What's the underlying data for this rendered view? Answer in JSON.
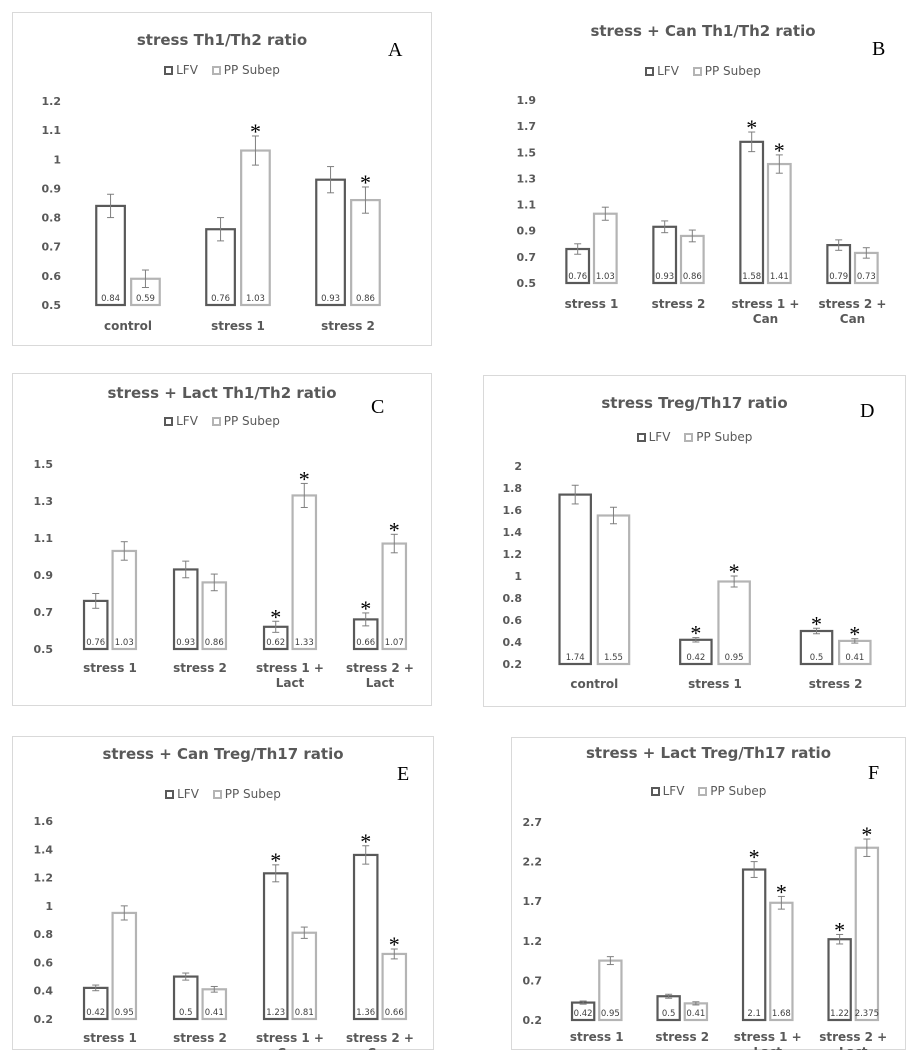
{
  "colors": {
    "series1": "#595959",
    "series2": "#b4b4b4",
    "text": "#595959"
  },
  "chart_data": [
    {
      "letter": "A",
      "type": "bar",
      "title": "stress Th1/Th2 ratio",
      "categories": [
        [
          "control"
        ],
        [
          "stress 1"
        ],
        [
          "stress 2"
        ]
      ],
      "ylim": [
        0.5,
        1.2
      ],
      "yticks": [
        "0.5",
        "0.6",
        "0.7",
        "0.8",
        "0.9",
        "1",
        "1.1",
        "1.2"
      ],
      "series": [
        {
          "name": "LFV",
          "values": [
            0.84,
            0.76,
            0.93
          ],
          "labels": [
            "0.84",
            "0.76",
            "0.93"
          ],
          "errors": [
            0.04,
            0.04,
            0.045
          ],
          "star": [
            false,
            false,
            false
          ]
        },
        {
          "name": "PP Subep",
          "values": [
            0.59,
            1.03,
            0.86
          ],
          "labels": [
            "0.59",
            "1.03",
            "0.86"
          ],
          "errors": [
            0.03,
            0.05,
            0.045
          ],
          "star": [
            false,
            true,
            true
          ]
        }
      ]
    },
    {
      "letter": "B",
      "type": "bar",
      "title": "stress + Can Th1/Th2 ratio",
      "categories": [
        [
          "stress 1"
        ],
        [
          "stress 2"
        ],
        [
          "stress 1 +",
          "Can"
        ],
        [
          "stress 2 +",
          "Can"
        ]
      ],
      "ylim": [
        0.5,
        1.9
      ],
      "yticks": [
        "0.5",
        "0.7",
        "0.9",
        "1.1",
        "1.3",
        "1.5",
        "1.7",
        "1.9"
      ],
      "series": [
        {
          "name": "LFV",
          "values": [
            0.76,
            0.93,
            1.58,
            0.79
          ],
          "labels": [
            "0.76",
            "0.93",
            "1.58",
            "0.79"
          ],
          "errors": [
            0.04,
            0.045,
            0.075,
            0.04
          ],
          "star": [
            false,
            false,
            true,
            false
          ]
        },
        {
          "name": "PP Subep",
          "values": [
            1.03,
            0.86,
            1.41,
            0.73
          ],
          "labels": [
            "1.03",
            "0.86",
            "1.41",
            "0.73"
          ],
          "errors": [
            0.05,
            0.045,
            0.07,
            0.04
          ],
          "star": [
            false,
            false,
            true,
            false
          ]
        }
      ]
    },
    {
      "letter": "C",
      "type": "bar",
      "title": "stress + Lact Th1/Th2 ratio",
      "categories": [
        [
          "stress 1"
        ],
        [
          "stress 2"
        ],
        [
          "stress 1 +",
          "Lact"
        ],
        [
          "stress 2 +",
          "Lact"
        ]
      ],
      "ylim": [
        0.5,
        1.5
      ],
      "yticks": [
        "0.5",
        "0.7",
        "0.9",
        "1.1",
        "1.3",
        "1.5"
      ],
      "series": [
        {
          "name": "LFV",
          "values": [
            0.76,
            0.93,
            0.62,
            0.66
          ],
          "labels": [
            "0.76",
            "0.93",
            "0.62",
            "0.66"
          ],
          "errors": [
            0.04,
            0.045,
            0.03,
            0.035
          ],
          "star": [
            false,
            false,
            true,
            true
          ]
        },
        {
          "name": "PP Subep",
          "values": [
            1.03,
            0.86,
            1.33,
            1.07
          ],
          "labels": [
            "1.03",
            "0.86",
            "1.33",
            "1.07"
          ],
          "errors": [
            0.05,
            0.045,
            0.065,
            0.05
          ],
          "star": [
            false,
            false,
            true,
            true
          ]
        }
      ]
    },
    {
      "letter": "D",
      "type": "bar",
      "title": "stress Treg/Th17 ratio",
      "categories": [
        [
          "control"
        ],
        [
          "stress 1"
        ],
        [
          "stress 2"
        ]
      ],
      "ylim": [
        0.2,
        2.0
      ],
      "yticks": [
        "0.2",
        "0.4",
        "0.6",
        "0.8",
        "1",
        "1.2",
        "1.4",
        "1.6",
        "1.8",
        "2"
      ],
      "series": [
        {
          "name": "LFV",
          "values": [
            1.74,
            0.42,
            0.5
          ],
          "labels": [
            "1.74",
            "0.42",
            "0.5"
          ],
          "errors": [
            0.085,
            0.02,
            0.025
          ],
          "star": [
            false,
            true,
            true
          ]
        },
        {
          "name": "PP Subep",
          "values": [
            1.55,
            0.95,
            0.41
          ],
          "labels": [
            "1.55",
            "0.95",
            "0.41"
          ],
          "errors": [
            0.075,
            0.05,
            0.02
          ],
          "star": [
            false,
            true,
            true
          ]
        }
      ]
    },
    {
      "letter": "E",
      "type": "bar",
      "title": "stress + Can Treg/Th17 ratio",
      "categories": [
        [
          "stress 1"
        ],
        [
          "stress 2"
        ],
        [
          "stress 1 +",
          "Can"
        ],
        [
          "stress 2 +",
          "Can"
        ]
      ],
      "ylim": [
        0.2,
        1.6
      ],
      "yticks": [
        "0.2",
        "0.4",
        "0.6",
        "0.8",
        "1",
        "1.2",
        "1.4",
        "1.6"
      ],
      "series": [
        {
          "name": "LFV",
          "values": [
            0.42,
            0.5,
            1.23,
            1.36
          ],
          "labels": [
            "0.42",
            "0.5",
            "1.23",
            "1.36"
          ],
          "errors": [
            0.02,
            0.025,
            0.06,
            0.065
          ],
          "star": [
            false,
            false,
            true,
            true
          ]
        },
        {
          "name": "PP Subep",
          "values": [
            0.95,
            0.41,
            0.81,
            0.66
          ],
          "labels": [
            "0.95",
            "0.41",
            "0.81",
            "0.66"
          ],
          "errors": [
            0.05,
            0.02,
            0.04,
            0.035
          ],
          "star": [
            false,
            false,
            false,
            true
          ]
        }
      ]
    },
    {
      "letter": "F",
      "type": "bar",
      "title": "stress + Lact Treg/Th17 ratio",
      "categories": [
        [
          "stress 1"
        ],
        [
          "stress 2"
        ],
        [
          "stress 1 +",
          "Lact"
        ],
        [
          "stress 2 +",
          "Lact"
        ]
      ],
      "ylim": [
        0.2,
        2.7
      ],
      "yticks": [
        "0.2",
        "0.7",
        "1.2",
        "1.7",
        "2.2",
        "2.7"
      ],
      "series": [
        {
          "name": "LFV",
          "values": [
            0.42,
            0.5,
            2.1,
            1.22
          ],
          "labels": [
            "0.42",
            "0.5",
            "2.1",
            "1.22"
          ],
          "errors": [
            0.02,
            0.025,
            0.1,
            0.06
          ],
          "star": [
            false,
            false,
            true,
            true
          ]
        },
        {
          "name": "PP Subep",
          "values": [
            0.95,
            0.41,
            1.68,
            2.375
          ],
          "labels": [
            "0.95",
            "0.41",
            "1.68",
            "2.375"
          ],
          "errors": [
            0.05,
            0.02,
            0.08,
            0.11
          ],
          "star": [
            false,
            false,
            true,
            true
          ]
        }
      ]
    }
  ]
}
